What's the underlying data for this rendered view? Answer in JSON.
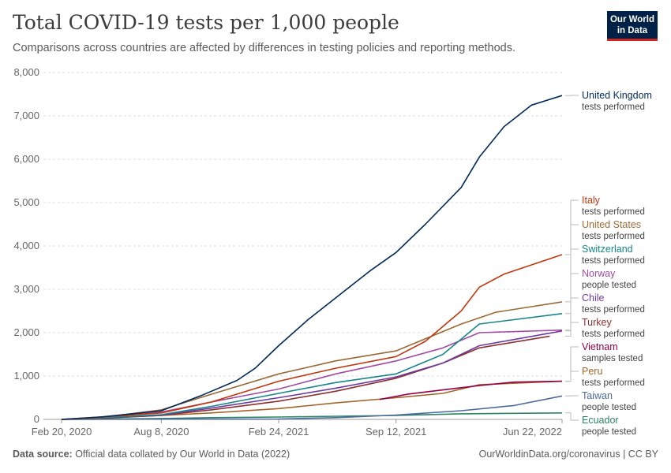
{
  "header": {
    "title": "Total COVID-19 tests per 1,000 people",
    "subtitle": "Comparisons across countries are affected by differences in testing policies and reporting methods.",
    "logo_line1": "Our World",
    "logo_line2": "in Data",
    "logo_bg": "#002147",
    "logo_accent": "#ce261e"
  },
  "footer": {
    "source_label": "Data source:",
    "source_text": " Official data collated by Our World in Data (2022)",
    "credit": "OurWorldinData.org/coronavirus | CC BY"
  },
  "chart_data": {
    "type": "line",
    "title": "Total COVID-19 tests per 1,000 people",
    "subtitle": "Comparisons across countries are affected by differences in testing policies and reporting methods.",
    "xlabel": "",
    "ylabel": "",
    "ylim": [
      0,
      8000
    ],
    "yticks": [
      0,
      1000,
      2000,
      3000,
      4000,
      5000,
      6000,
      7000,
      8000
    ],
    "ytick_labels": [
      "0",
      "1,000",
      "2,000",
      "3,000",
      "4,000",
      "5,000",
      "6,000",
      "7,000",
      "8,000"
    ],
    "xlim": [
      "2020-01-20",
      "2022-06-22"
    ],
    "xticks": [
      "2020-02-20",
      "2020-08-08",
      "2021-02-24",
      "2021-09-12",
      "2022-06-22"
    ],
    "xtick_labels": [
      "Feb 20, 2020",
      "Aug 8, 2020",
      "Feb 24, 2021",
      "Sep 12, 2021",
      "Jun 22, 2022"
    ],
    "grid": "horizontal dashed",
    "legend": "right, labels at line ends",
    "series": [
      {
        "name": "United Kingdom",
        "note": "tests performed",
        "color": "#00295b",
        "x": [
          "2020-02-20",
          "2020-05-01",
          "2020-08-08",
          "2020-10-15",
          "2020-12-15",
          "2021-01-15",
          "2021-02-24",
          "2021-04-15",
          "2021-06-15",
          "2021-08-01",
          "2021-09-12",
          "2021-11-01",
          "2022-01-01",
          "2022-02-01",
          "2022-03-15",
          "2022-05-01",
          "2022-06-22"
        ],
        "y": [
          0,
          60,
          200,
          550,
          900,
          1180,
          1700,
          2300,
          2950,
          3450,
          3850,
          4500,
          5350,
          6050,
          6750,
          7250,
          7470
        ]
      },
      {
        "name": "Italy",
        "note": "tests performed",
        "color": "#c0360d",
        "x": [
          "2020-02-20",
          "2020-05-01",
          "2020-08-08",
          "2020-11-01",
          "2021-02-24",
          "2021-06-01",
          "2021-09-12",
          "2021-11-01",
          "2022-01-01",
          "2022-02-01",
          "2022-03-15",
          "2022-06-22"
        ],
        "y": [
          0,
          60,
          150,
          400,
          880,
          1180,
          1450,
          1800,
          2500,
          3050,
          3350,
          3800
        ]
      },
      {
        "name": "United States",
        "note": "tests performed",
        "color": "#9a6a35",
        "x": [
          "2020-02-20",
          "2020-05-01",
          "2020-08-08",
          "2020-11-01",
          "2021-02-24",
          "2021-06-01",
          "2021-09-12",
          "2022-01-01",
          "2022-03-01",
          "2022-06-22"
        ],
        "y": [
          0,
          50,
          220,
          580,
          1050,
          1350,
          1580,
          2200,
          2470,
          2710
        ]
      },
      {
        "name": "Switzerland",
        "note": "tests performed",
        "color": "#18858b",
        "x": [
          "2020-02-20",
          "2020-05-01",
          "2020-08-08",
          "2020-11-01",
          "2021-02-24",
          "2021-06-01",
          "2021-09-12",
          "2021-12-01",
          "2022-02-01",
          "2022-06-22"
        ],
        "y": [
          0,
          40,
          110,
          300,
          600,
          850,
          1050,
          1500,
          2200,
          2440
        ]
      },
      {
        "name": "Norway",
        "note": "people tested",
        "color": "#a24ba2",
        "x": [
          "2020-02-20",
          "2020-05-01",
          "2020-08-08",
          "2020-11-01",
          "2021-02-24",
          "2021-06-01",
          "2021-09-12",
          "2021-12-01",
          "2022-02-01",
          "2022-06-22"
        ],
        "y": [
          0,
          50,
          170,
          400,
          700,
          1050,
          1350,
          1650,
          2000,
          2060
        ]
      },
      {
        "name": "Chile",
        "note": "tests performed",
        "color": "#6d3c9e",
        "x": [
          "2020-02-20",
          "2020-05-01",
          "2020-08-08",
          "2020-11-01",
          "2021-02-24",
          "2021-06-01",
          "2021-09-12",
          "2021-12-01",
          "2022-02-01",
          "2022-06-22"
        ],
        "y": [
          0,
          40,
          100,
          260,
          500,
          720,
          980,
          1300,
          1700,
          2040
        ]
      },
      {
        "name": "Turkey",
        "note": "tests performed",
        "color": "#8c2f2f",
        "x": [
          "2020-02-20",
          "2020-05-01",
          "2020-08-08",
          "2020-11-01",
          "2021-02-24",
          "2021-06-01",
          "2021-09-12",
          "2021-12-01",
          "2022-02-01",
          "2022-06-01"
        ],
        "y": [
          0,
          30,
          90,
          220,
          420,
          650,
          950,
          1300,
          1650,
          1920
        ]
      },
      {
        "name": "Vietnam",
        "note": "samples tested",
        "color": "#970046",
        "x": [
          "2021-08-15",
          "2021-10-01",
          "2021-12-01",
          "2022-02-01",
          "2022-04-01",
          "2022-06-22"
        ],
        "y": [
          460,
          580,
          680,
          780,
          860,
          880
        ]
      },
      {
        "name": "Peru",
        "note": "tests performed",
        "color": "#a4652b",
        "x": [
          "2020-02-20",
          "2020-05-01",
          "2020-08-08",
          "2020-11-01",
          "2021-02-24",
          "2021-06-01",
          "2021-09-12",
          "2021-12-01",
          "2022-02-01",
          "2022-06-22"
        ],
        "y": [
          0,
          30,
          90,
          150,
          250,
          380,
          500,
          600,
          800,
          880
        ]
      },
      {
        "name": "Taiwan",
        "note": "people tested",
        "color": "#4c6a9c",
        "x": [
          "2020-02-20",
          "2020-08-08",
          "2021-02-24",
          "2021-06-01",
          "2021-09-12",
          "2022-01-01",
          "2022-04-01",
          "2022-06-22"
        ],
        "y": [
          0,
          5,
          10,
          40,
          100,
          200,
          320,
          540
        ]
      },
      {
        "name": "Ecuador",
        "note": "people tested",
        "color": "#2c8465",
        "x": [
          "2020-02-20",
          "2020-05-01",
          "2020-08-08",
          "2020-11-01",
          "2021-02-24",
          "2021-09-12",
          "2022-01-01",
          "2022-06-22"
        ],
        "y": [
          0,
          5,
          20,
          40,
          55,
          90,
          130,
          150
        ]
      }
    ]
  }
}
